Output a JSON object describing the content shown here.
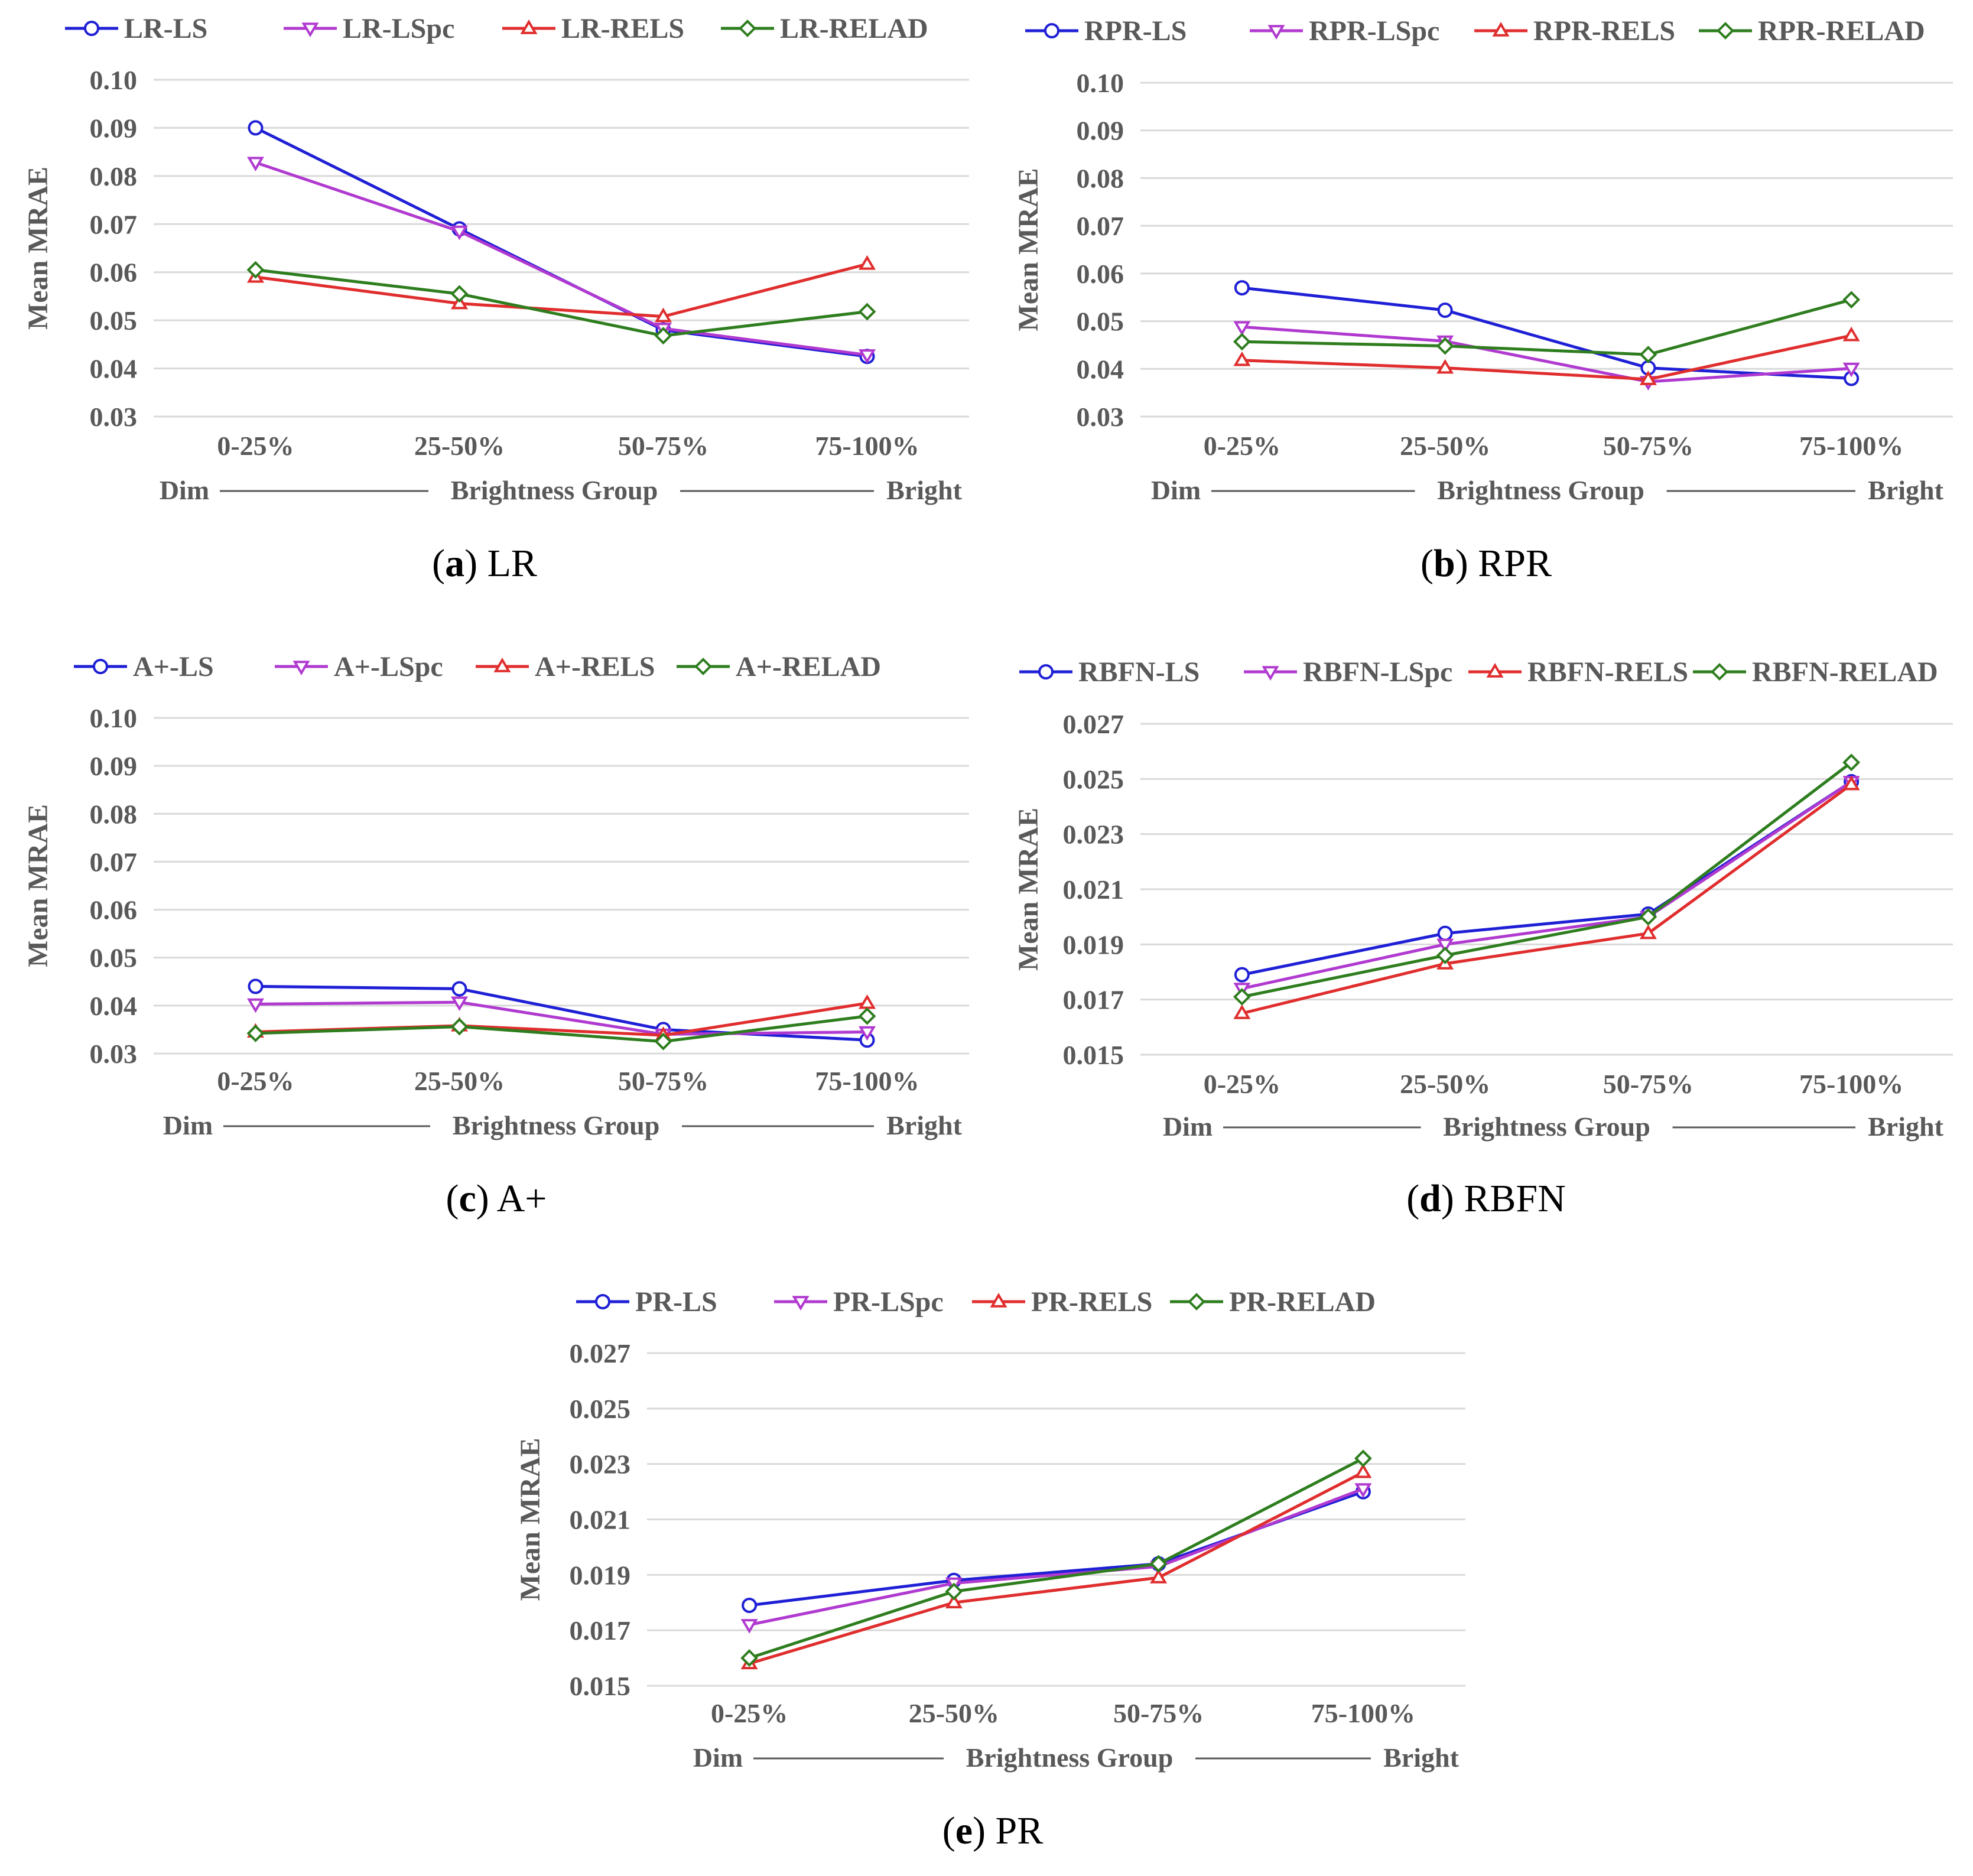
{
  "figure": {
    "colors": {
      "LS": "#1f1fd6",
      "LSpc": "#b03ad0",
      "RELS": "#e02d2d",
      "RELAD": "#2e7d1e",
      "grid": "#d9d9d9",
      "text": "#595959"
    },
    "markers": {
      "LS": "circle",
      "LSpc": "triangle-down",
      "RELS": "triangle-up",
      "RELAD": "diamond"
    }
  },
  "chart_data": [
    {
      "type": "line",
      "caption_tag": "a",
      "caption_text": "LR",
      "categories": [
        "0-25%",
        "25-50%",
        "50-75%",
        "75-100%"
      ],
      "xlabel_left": "Dim",
      "xlabel": "Brightness Group",
      "xlabel_right": "Bright",
      "ylabel": "Mean MRAE",
      "ylim": [
        0.03,
        0.1
      ],
      "yticks": [
        "0.03",
        "0.04",
        "0.05",
        "0.06",
        "0.07",
        "0.08",
        "0.09",
        "0.10"
      ],
      "grid": true,
      "legend_position": "top",
      "series": [
        {
          "name": "LR-LS",
          "key": "LS",
          "values": [
            0.09,
            0.069,
            0.048,
            0.0425
          ]
        },
        {
          "name": "LR-LSpc",
          "key": "LSpc",
          "values": [
            0.0828,
            0.0685,
            0.0483,
            0.0428
          ]
        },
        {
          "name": "LR-RELS",
          "key": "RELS",
          "values": [
            0.059,
            0.0535,
            0.0508,
            0.0617
          ]
        },
        {
          "name": "LR-RELAD",
          "key": "RELAD",
          "values": [
            0.0605,
            0.0555,
            0.0468,
            0.0518
          ]
        }
      ]
    },
    {
      "type": "line",
      "caption_tag": "b",
      "caption_text": "RPR",
      "categories": [
        "0-25%",
        "25-50%",
        "50-75%",
        "75-100%"
      ],
      "xlabel_left": "Dim",
      "xlabel": "Brightness Group",
      "xlabel_right": "Bright",
      "ylabel": "Mean MRAE",
      "ylim": [
        0.03,
        0.1
      ],
      "yticks": [
        "0.03",
        "0.04",
        "0.05",
        "0.06",
        "0.07",
        "0.08",
        "0.09",
        "0.10"
      ],
      "grid": true,
      "legend_position": "top",
      "series": [
        {
          "name": "RPR-LS",
          "key": "LS",
          "values": [
            0.057,
            0.0523,
            0.0402,
            0.038
          ]
        },
        {
          "name": "RPR-LSpc",
          "key": "LSpc",
          "values": [
            0.0488,
            0.0458,
            0.0373,
            0.0401
          ]
        },
        {
          "name": "RPR-RELS",
          "key": "RELS",
          "values": [
            0.0418,
            0.0402,
            0.0378,
            0.047
          ]
        },
        {
          "name": "RPR-RELAD",
          "key": "RELAD",
          "values": [
            0.0457,
            0.0448,
            0.043,
            0.0545
          ]
        }
      ]
    },
    {
      "type": "line",
      "caption_tag": "c",
      "caption_text": "A+",
      "categories": [
        "0-25%",
        "25-50%",
        "50-75%",
        "75-100%"
      ],
      "xlabel_left": "Dim",
      "xlabel": "Brightness Group",
      "xlabel_right": "Bright",
      "ylabel": "Mean MRAE",
      "ylim": [
        0.03,
        0.1
      ],
      "yticks": [
        "0.03",
        "0.04",
        "0.05",
        "0.06",
        "0.07",
        "0.08",
        "0.09",
        "0.10"
      ],
      "grid": true,
      "legend_position": "top",
      "series": [
        {
          "name": "A+-LS",
          "key": "LS",
          "values": [
            0.044,
            0.0435,
            0.035,
            0.0328
          ]
        },
        {
          "name": "A+-LSpc",
          "key": "LSpc",
          "values": [
            0.0403,
            0.0407,
            0.034,
            0.0345
          ]
        },
        {
          "name": "A+-RELS",
          "key": "RELS",
          "values": [
            0.0345,
            0.0358,
            0.0338,
            0.0405
          ]
        },
        {
          "name": "A+-RELAD",
          "key": "RELAD",
          "values": [
            0.0342,
            0.0356,
            0.0325,
            0.0378
          ]
        }
      ]
    },
    {
      "type": "line",
      "caption_tag": "d",
      "caption_text": "RBFN",
      "categories": [
        "0-25%",
        "25-50%",
        "50-75%",
        "75-100%"
      ],
      "xlabel_left": "Dim",
      "xlabel": "Brightness Group",
      "xlabel_right": "Bright",
      "ylabel": "Mean MRAE",
      "ylim": [
        0.015,
        0.027
      ],
      "yticks": [
        "0.015",
        "0.017",
        "0.019",
        "0.021",
        "0.023",
        "0.025",
        "0.027"
      ],
      "grid": true,
      "legend_position": "top",
      "series": [
        {
          "name": "RBFN-LS",
          "key": "LS",
          "values": [
            0.0179,
            0.0194,
            0.0201,
            0.0249
          ]
        },
        {
          "name": "RBFN-LSpc",
          "key": "LSpc",
          "values": [
            0.0174,
            0.019,
            0.02,
            0.0249
          ]
        },
        {
          "name": "RBFN-RELS",
          "key": "RELS",
          "values": [
            0.0165,
            0.0183,
            0.0194,
            0.0248
          ]
        },
        {
          "name": "RBFN-RELAD",
          "key": "RELAD",
          "values": [
            0.0171,
            0.0186,
            0.02,
            0.0256
          ]
        }
      ]
    },
    {
      "type": "line",
      "caption_tag": "e",
      "caption_text": "PR",
      "categories": [
        "0-25%",
        "25-50%",
        "50-75%",
        "75-100%"
      ],
      "xlabel_left": "Dim",
      "xlabel": "Brightness Group",
      "xlabel_right": "Bright",
      "ylabel": "Mean MRAE",
      "ylim": [
        0.015,
        0.027
      ],
      "yticks": [
        "0.015",
        "0.017",
        "0.019",
        "0.021",
        "0.023",
        "0.025",
        "0.027"
      ],
      "grid": true,
      "legend_position": "top",
      "series": [
        {
          "name": "PR-LS",
          "key": "LS",
          "values": [
            0.0179,
            0.0188,
            0.0194,
            0.022
          ]
        },
        {
          "name": "PR-LSpc",
          "key": "LSpc",
          "values": [
            0.0172,
            0.0187,
            0.0193,
            0.0221
          ]
        },
        {
          "name": "PR-RELS",
          "key": "RELS",
          "values": [
            0.0158,
            0.018,
            0.0189,
            0.0227
          ]
        },
        {
          "name": "PR-RELAD",
          "key": "RELAD",
          "values": [
            0.016,
            0.0184,
            0.0194,
            0.0232
          ]
        }
      ]
    }
  ]
}
